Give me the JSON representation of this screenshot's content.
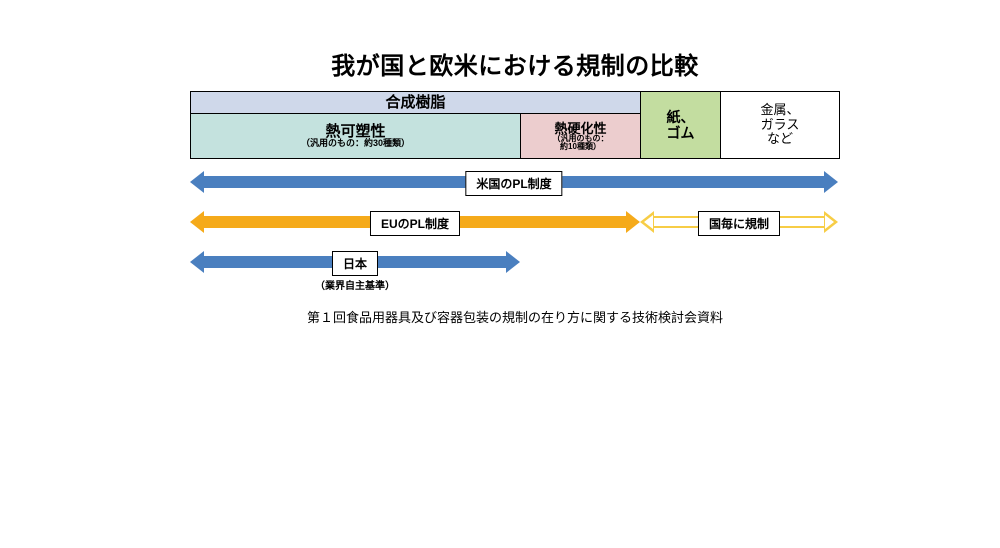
{
  "title": "我が国と欧米における規制の比較",
  "colors": {
    "resin_header": "#cfd8ea",
    "thermoplastic": "#c4e2de",
    "thermoset": "#eccdce",
    "paper_rubber": "#c3dda0",
    "metal_glass": "#ffffff",
    "arrow_us": "#4a7fbf",
    "arrow_eu": "#f5aa1a",
    "arrow_jp": "#4a7fbf",
    "arrow_eu_outline": "#f7cd46"
  },
  "px": {
    "resin_end": 450,
    "thermoplastic_end": 330,
    "paper_end": 530,
    "total": 648
  },
  "table": {
    "resin": "合成樹脂",
    "thermoplastic": "熱可塑性",
    "thermoplastic_sub": "（汎用のもの：約30種類）",
    "thermoset": "熱硬化性",
    "thermoset_sub": "（汎用のもの：\n約10種類）",
    "paper_rubber": "紙、\nゴム",
    "metal_glass": "金属、\nガラス\nなど"
  },
  "arrows": {
    "us": {
      "label": "米国のPL制度",
      "start": 0,
      "end": 648
    },
    "eu": {
      "label": "EUのPL制度",
      "start": 0,
      "end": 450
    },
    "eu_per_country": {
      "label": "国毎に規制",
      "start": 450,
      "end": 648
    },
    "jp": {
      "label": "日本",
      "note": "（業界自主基準）",
      "start": 0,
      "end": 330
    }
  },
  "caption": "第１回食品用器具及び容器包装の規制の在り方に関する技術検討会資料"
}
